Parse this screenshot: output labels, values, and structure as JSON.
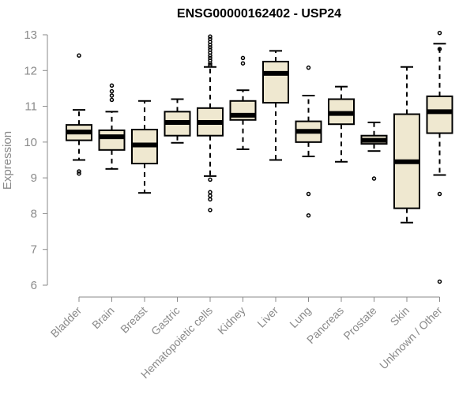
{
  "chart_data": {
    "type": "boxplot",
    "title": "ENSG00000162402 - USP24",
    "xlabel": "",
    "ylabel": "Expression",
    "ylim": [
      6,
      13
    ],
    "yticks": [
      6,
      7,
      8,
      9,
      10,
      11,
      12,
      13
    ],
    "grid": false,
    "categories": [
      "Bladder",
      "Brain",
      "Breast",
      "Gastric",
      "Hematopoietic cells",
      "Kidney",
      "Liver",
      "Lung",
      "Pancreas",
      "Prostate",
      "Skin",
      "Unknown / Other"
    ],
    "box_fill": "#efe8d0",
    "boxes": [
      {
        "min": 9.5,
        "q1": 10.05,
        "median": 10.28,
        "q3": 10.48,
        "max": 10.9,
        "outliers": [
          12.42,
          9.12,
          9.18
        ]
      },
      {
        "min": 9.25,
        "q1": 9.78,
        "median": 10.15,
        "q3": 10.33,
        "max": 10.85,
        "outliers": [
          11.58,
          11.42,
          11.3,
          11.18
        ]
      },
      {
        "min": 8.58,
        "q1": 9.4,
        "median": 9.92,
        "q3": 10.35,
        "max": 11.15,
        "outliers": []
      },
      {
        "min": 9.98,
        "q1": 10.18,
        "median": 10.55,
        "q3": 10.85,
        "max": 11.2,
        "outliers": []
      },
      {
        "min": 9.05,
        "q1": 10.18,
        "median": 10.55,
        "q3": 10.95,
        "max": 12.1,
        "outliers": [
          12.95,
          12.88,
          12.8,
          12.72,
          12.65,
          12.58,
          12.5,
          12.42,
          12.35,
          12.28,
          12.2,
          12.15,
          8.95,
          8.6,
          8.5,
          8.4,
          8.1
        ]
      },
      {
        "min": 9.8,
        "q1": 10.62,
        "median": 10.75,
        "q3": 11.15,
        "max": 11.45,
        "outliers": [
          12.35,
          12.2
        ]
      },
      {
        "min": 9.5,
        "q1": 11.1,
        "median": 11.92,
        "q3": 12.25,
        "max": 12.55,
        "outliers": []
      },
      {
        "min": 9.6,
        "q1": 10.0,
        "median": 10.3,
        "q3": 10.58,
        "max": 11.3,
        "outliers": [
          12.08,
          8.55,
          7.95
        ]
      },
      {
        "min": 9.45,
        "q1": 10.5,
        "median": 10.8,
        "q3": 11.2,
        "max": 11.55,
        "outliers": []
      },
      {
        "min": 9.75,
        "q1": 9.95,
        "median": 10.05,
        "q3": 10.18,
        "max": 10.55,
        "outliers": [
          8.98
        ]
      },
      {
        "min": 7.75,
        "q1": 8.15,
        "median": 9.45,
        "q3": 10.78,
        "max": 12.1,
        "outliers": []
      },
      {
        "min": 9.08,
        "q1": 10.25,
        "median": 10.85,
        "q3": 11.28,
        "max": 12.75,
        "outliers": [
          13.05,
          12.6,
          8.55,
          6.1
        ]
      }
    ]
  }
}
